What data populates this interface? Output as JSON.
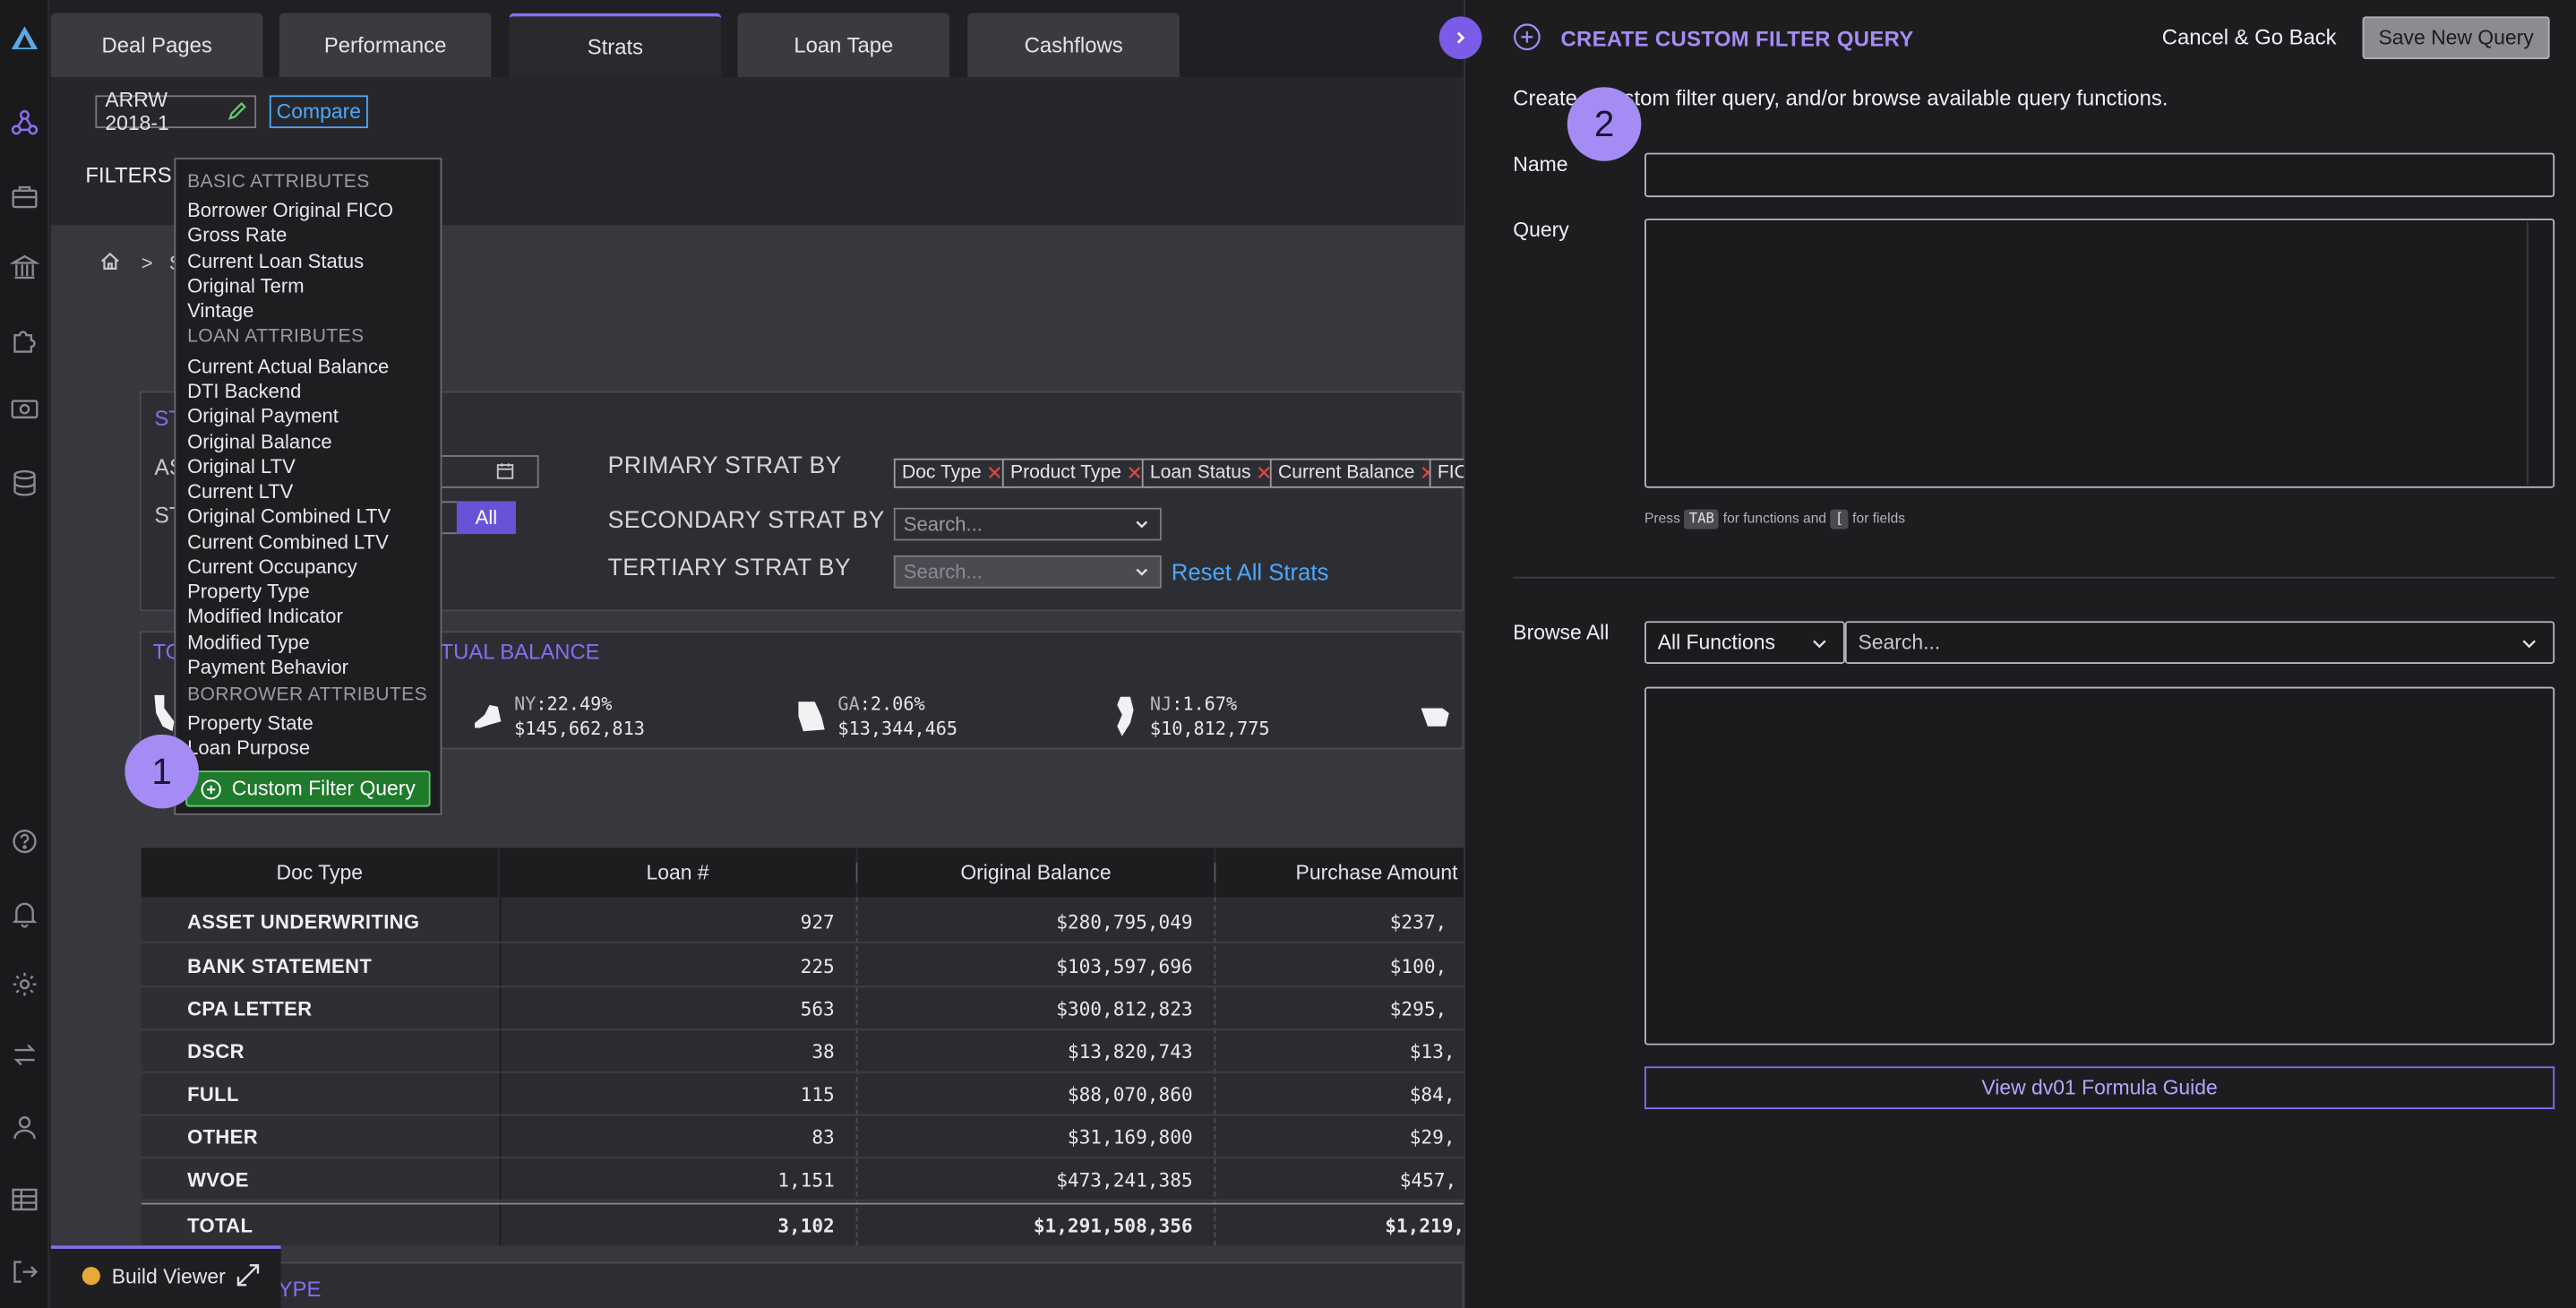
{
  "tabs": [
    "Deal Pages",
    "Performance",
    "Strats",
    "Loan Tape",
    "Cashflows"
  ],
  "active_tab": "Strats",
  "deal": {
    "name": "ARRW 2018-1",
    "compare_label": "Compare"
  },
  "filters_label": "FILTERS",
  "breadcrumb": {
    "separator": ">",
    "partial": "S"
  },
  "strat_panel": {
    "title_fragment": "ST",
    "as_of_fragment": "AS",
    "st_fragment": "ST",
    "all_button": "All",
    "primary_label": "PRIMARY STRAT BY",
    "secondary_label": "SECONDARY STRAT BY",
    "tertiary_label": "TERTIARY STRAT BY",
    "primary_tags": [
      "Doc Type",
      "Product Type",
      "Loan Status",
      "Current Balance",
      "FIC"
    ],
    "secondary_placeholder": "Search...",
    "tertiary_placeholder": "Search...",
    "reset_label": "Reset All Strats"
  },
  "states_panel": {
    "title_left": "TO",
    "title_right": "TUAL BALANCE",
    "states": [
      {
        "abbr": "NY",
        "pct": "22.49%",
        "amount": "$145,662,813"
      },
      {
        "abbr": "GA",
        "pct": "2.06%",
        "amount": "$13,344,465"
      },
      {
        "abbr": "NJ",
        "pct": "1.67%",
        "amount": "$10,812,775"
      }
    ]
  },
  "table": {
    "headers": [
      "Doc Type",
      "Loan #",
      "Original Balance",
      "Purchase Amount"
    ],
    "rows": [
      {
        "name": "ASSET UNDERWRITING",
        "loans": "927",
        "orig": "$280,795,049",
        "purchase": "$237,"
      },
      {
        "name": "BANK STATEMENT",
        "loans": "225",
        "orig": "$103,597,696",
        "purchase": "$100,"
      },
      {
        "name": "CPA LETTER",
        "loans": "563",
        "orig": "$300,812,823",
        "purchase": "$295,"
      },
      {
        "name": "DSCR",
        "loans": "38",
        "orig": "$13,820,743",
        "purchase": "$13,"
      },
      {
        "name": "FULL",
        "loans": "115",
        "orig": "$88,070,860",
        "purchase": "$84,"
      },
      {
        "name": "OTHER",
        "loans": "83",
        "orig": "$31,169,800",
        "purchase": "$29,"
      },
      {
        "name": "WVOE",
        "loans": "1,151",
        "orig": "$473,241,385",
        "purchase": "$457,"
      }
    ],
    "total": {
      "name": "TOTAL",
      "loans": "3,102",
      "orig": "$1,291,508,356",
      "purchase": "$1,219,"
    }
  },
  "bottom_fragment": "PRODUCT TYPE",
  "dropdown": {
    "sections": [
      {
        "heading": "BASIC ATTRIBUTES",
        "items": [
          "Borrower Original FICO",
          "Gross Rate",
          "Current Loan Status",
          "Original Term",
          "Vintage"
        ]
      },
      {
        "heading": "LOAN ATTRIBUTES",
        "items": [
          "Current Actual Balance",
          "DTI Backend",
          "Original Payment",
          "Original Balance",
          "Original LTV",
          "Current LTV",
          "Original Combined LTV",
          "Current Combined LTV",
          "Current Occupancy",
          "Property Type",
          "Modified Indicator",
          "Modified Type",
          "Payment Behavior"
        ]
      },
      {
        "heading": "BORROWER ATTRIBUTES",
        "items": [
          "Property State",
          "Loan Purpose"
        ]
      }
    ],
    "custom_button": "Custom Filter Query"
  },
  "steps": [
    "1",
    "2"
  ],
  "build_viewer": {
    "label": "Build Viewer"
  },
  "right_panel": {
    "title": "CREATE CUSTOM FILTER QUERY",
    "cancel": "Cancel & Go Back",
    "save": "Save New Query",
    "description": "Create a custom filter query, and/or browse available query functions.",
    "name_label": "Name",
    "query_label": "Query",
    "hint_press": "Press",
    "hint_tab": "TAB",
    "hint_mid": "for functions and",
    "hint_bracket": "[",
    "hint_end": "for fields",
    "browse_label": "Browse All",
    "functions_select": "All Functions",
    "search_placeholder": "Search...",
    "formula_button": "View dv01 Formula Guide"
  },
  "colors": {
    "accent": "#8b6cf0",
    "step_circle": "#a58cf4",
    "green_button": "#1f7a2c",
    "remove_x": "#e8453c",
    "link_blue": "#4aa8ff"
  }
}
